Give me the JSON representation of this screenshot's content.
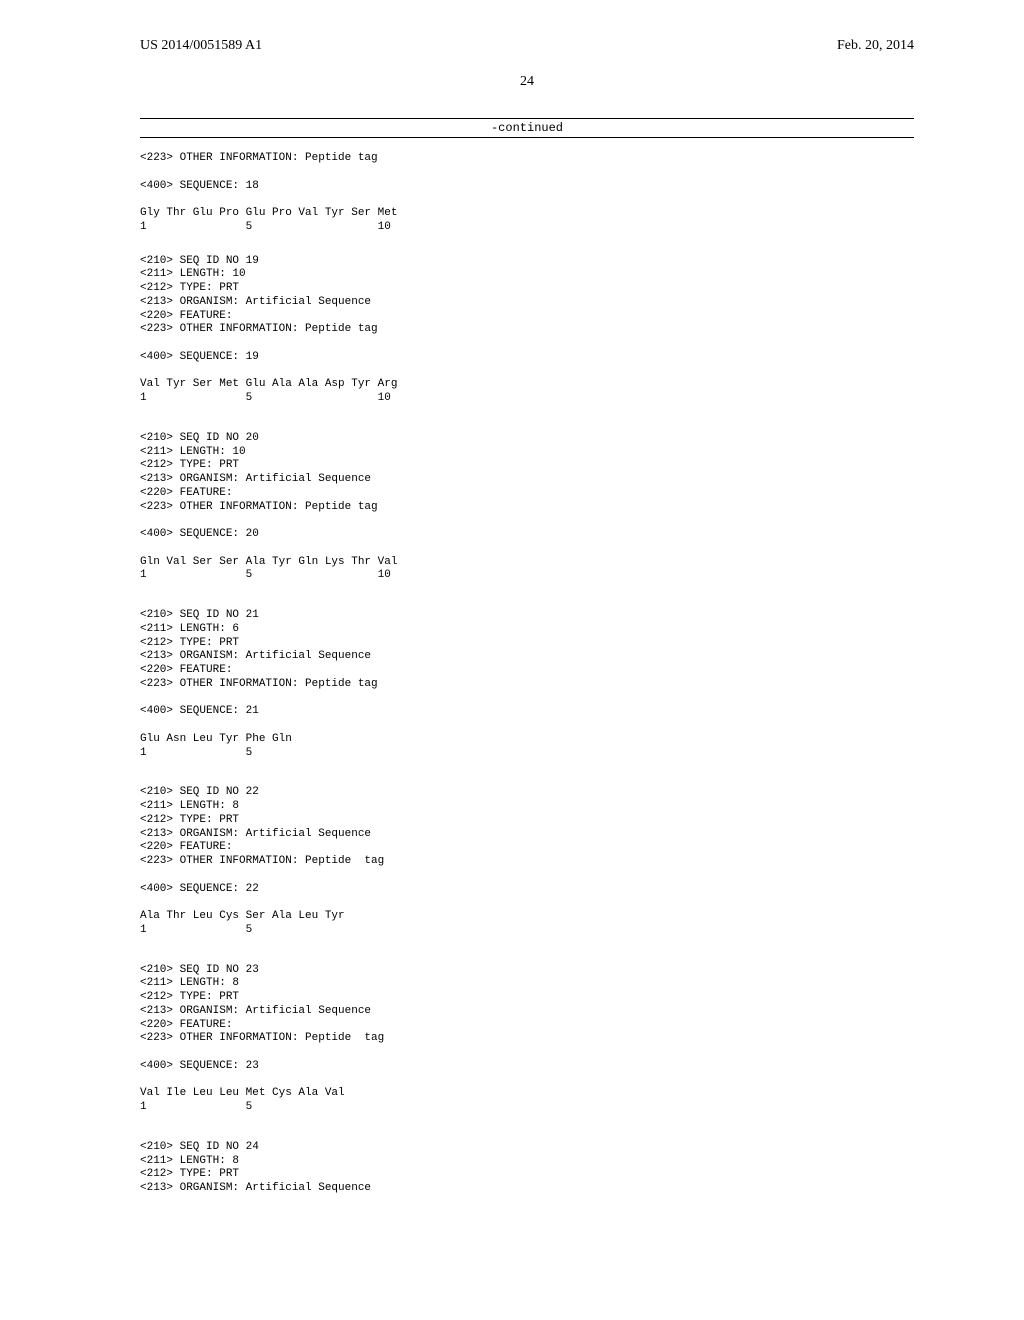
{
  "header": {
    "pub_number": "US 2014/0051589 A1",
    "pub_date": "Feb. 20, 2014",
    "page_number": "24",
    "continued_label": "-continued"
  },
  "blocks": [
    {
      "lines": [
        "<223> OTHER INFORMATION: Peptide tag",
        "",
        "<400> SEQUENCE: 18",
        "",
        "Gly Thr Glu Pro Glu Pro Val Tyr Ser Met",
        "1               5                   10"
      ]
    },
    {
      "lines": [
        "<210> SEQ ID NO 19",
        "<211> LENGTH: 10",
        "<212> TYPE: PRT",
        "<213> ORGANISM: Artificial Sequence",
        "<220> FEATURE:",
        "<223> OTHER INFORMATION: Peptide tag",
        "",
        "<400> SEQUENCE: 19",
        "",
        "Val Tyr Ser Met Glu Ala Ala Asp Tyr Arg",
        "1               5                   10"
      ]
    },
    {
      "lines": [
        "<210> SEQ ID NO 20",
        "<211> LENGTH: 10",
        "<212> TYPE: PRT",
        "<213> ORGANISM: Artificial Sequence",
        "<220> FEATURE:",
        "<223> OTHER INFORMATION: Peptide tag",
        "",
        "<400> SEQUENCE: 20",
        "",
        "Gln Val Ser Ser Ala Tyr Gln Lys Thr Val",
        "1               5                   10"
      ]
    },
    {
      "lines": [
        "<210> SEQ ID NO 21",
        "<211> LENGTH: 6",
        "<212> TYPE: PRT",
        "<213> ORGANISM: Artificial Sequence",
        "<220> FEATURE:",
        "<223> OTHER INFORMATION: Peptide tag",
        "",
        "<400> SEQUENCE: 21",
        "",
        "Glu Asn Leu Tyr Phe Gln",
        "1               5"
      ]
    },
    {
      "lines": [
        "<210> SEQ ID NO 22",
        "<211> LENGTH: 8",
        "<212> TYPE: PRT",
        "<213> ORGANISM: Artificial Sequence",
        "<220> FEATURE:",
        "<223> OTHER INFORMATION: Peptide  tag",
        "",
        "<400> SEQUENCE: 22",
        "",
        "Ala Thr Leu Cys Ser Ala Leu Tyr",
        "1               5"
      ]
    },
    {
      "lines": [
        "<210> SEQ ID NO 23",
        "<211> LENGTH: 8",
        "<212> TYPE: PRT",
        "<213> ORGANISM: Artificial Sequence",
        "<220> FEATURE:",
        "<223> OTHER INFORMATION: Peptide  tag",
        "",
        "<400> SEQUENCE: 23",
        "",
        "Val Ile Leu Leu Met Cys Ala Val",
        "1               5"
      ]
    },
    {
      "lines": [
        "<210> SEQ ID NO 24",
        "<211> LENGTH: 8",
        "<212> TYPE: PRT",
        "<213> ORGANISM: Artificial Sequence"
      ]
    }
  ]
}
